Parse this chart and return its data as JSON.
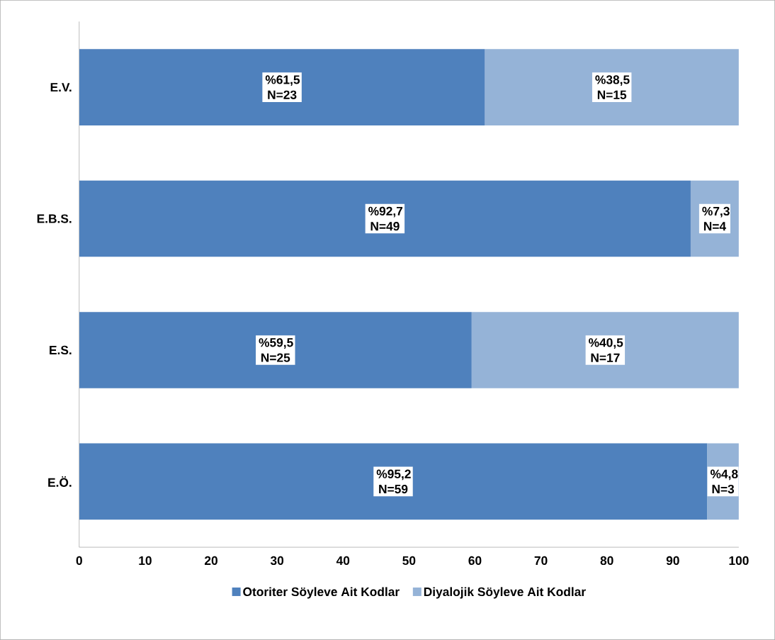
{
  "chart_data": {
    "type": "bar",
    "orientation": "horizontal",
    "stacked": true,
    "categories": [
      "E.V.",
      "E.B.S.",
      "E.S.",
      "E.Ö."
    ],
    "series": [
      {
        "name": "Otoriter Söyleve Ait Kodlar",
        "color": "#4f81bd",
        "values": [
          61.5,
          92.7,
          59.5,
          95.2
        ],
        "value_labels": [
          "%61,5 N=23",
          "%92,7 N=49",
          "%59,5 N=25",
          "%95,2 N=59"
        ]
      },
      {
        "name": "Diyalojik Söyleve Ait Kodlar",
        "color": "#95b3d7",
        "values": [
          38.5,
          7.3,
          40.5,
          4.8
        ],
        "value_labels": [
          "%38,5 N=15",
          "%7,3 N=4",
          "%40,5 N=17",
          "%4,8 N=3"
        ]
      }
    ],
    "xlim": [
      0,
      100
    ],
    "xticks": [
      0,
      10,
      20,
      30,
      40,
      50,
      60,
      70,
      80,
      90,
      100
    ],
    "grid": false,
    "legend": "bottom"
  }
}
